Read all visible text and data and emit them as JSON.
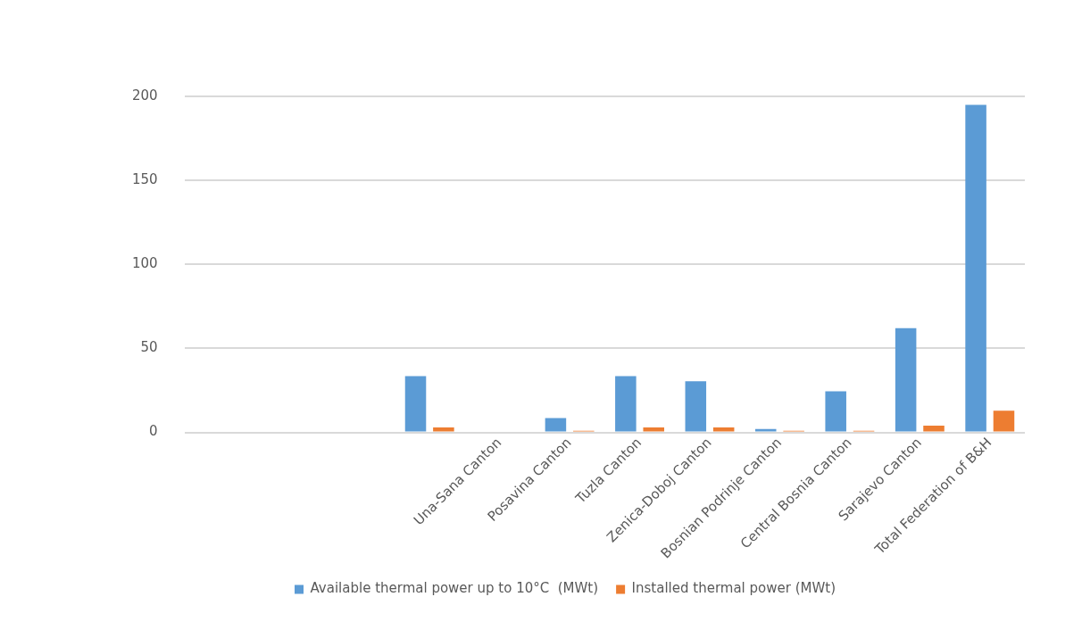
{
  "chart_data": {
    "type": "bar",
    "categories": [
      null,
      null,
      null,
      null,
      "Una-Sana Canton",
      "Posavina Canton",
      "Tuzla Canton",
      "Zenica-Doboj Canton",
      "Bosnian Podrinje Canton",
      "Central Bosnia Canton",
      "Sarajevo Canton",
      "Total Federation of B&H"
    ],
    "series": [
      {
        "name": "Available thermal power up to 10°C  (MWt)",
        "color": "#5b9bd5",
        "values": [
          null,
          null,
          null,
          33.5,
          null,
          8.5,
          33.5,
          30.5,
          2,
          24.5,
          62,
          195
        ]
      },
      {
        "name": "Installed thermal power (MWt)",
        "color": "#ed7d31",
        "values": [
          null,
          null,
          null,
          3,
          null,
          1,
          3,
          3,
          1,
          1,
          4,
          13
        ]
      }
    ],
    "ylim": [
      0,
      200
    ],
    "yticks": [
      0,
      50,
      100,
      150,
      200
    ],
    "grid": "y",
    "legend": "bottom"
  }
}
